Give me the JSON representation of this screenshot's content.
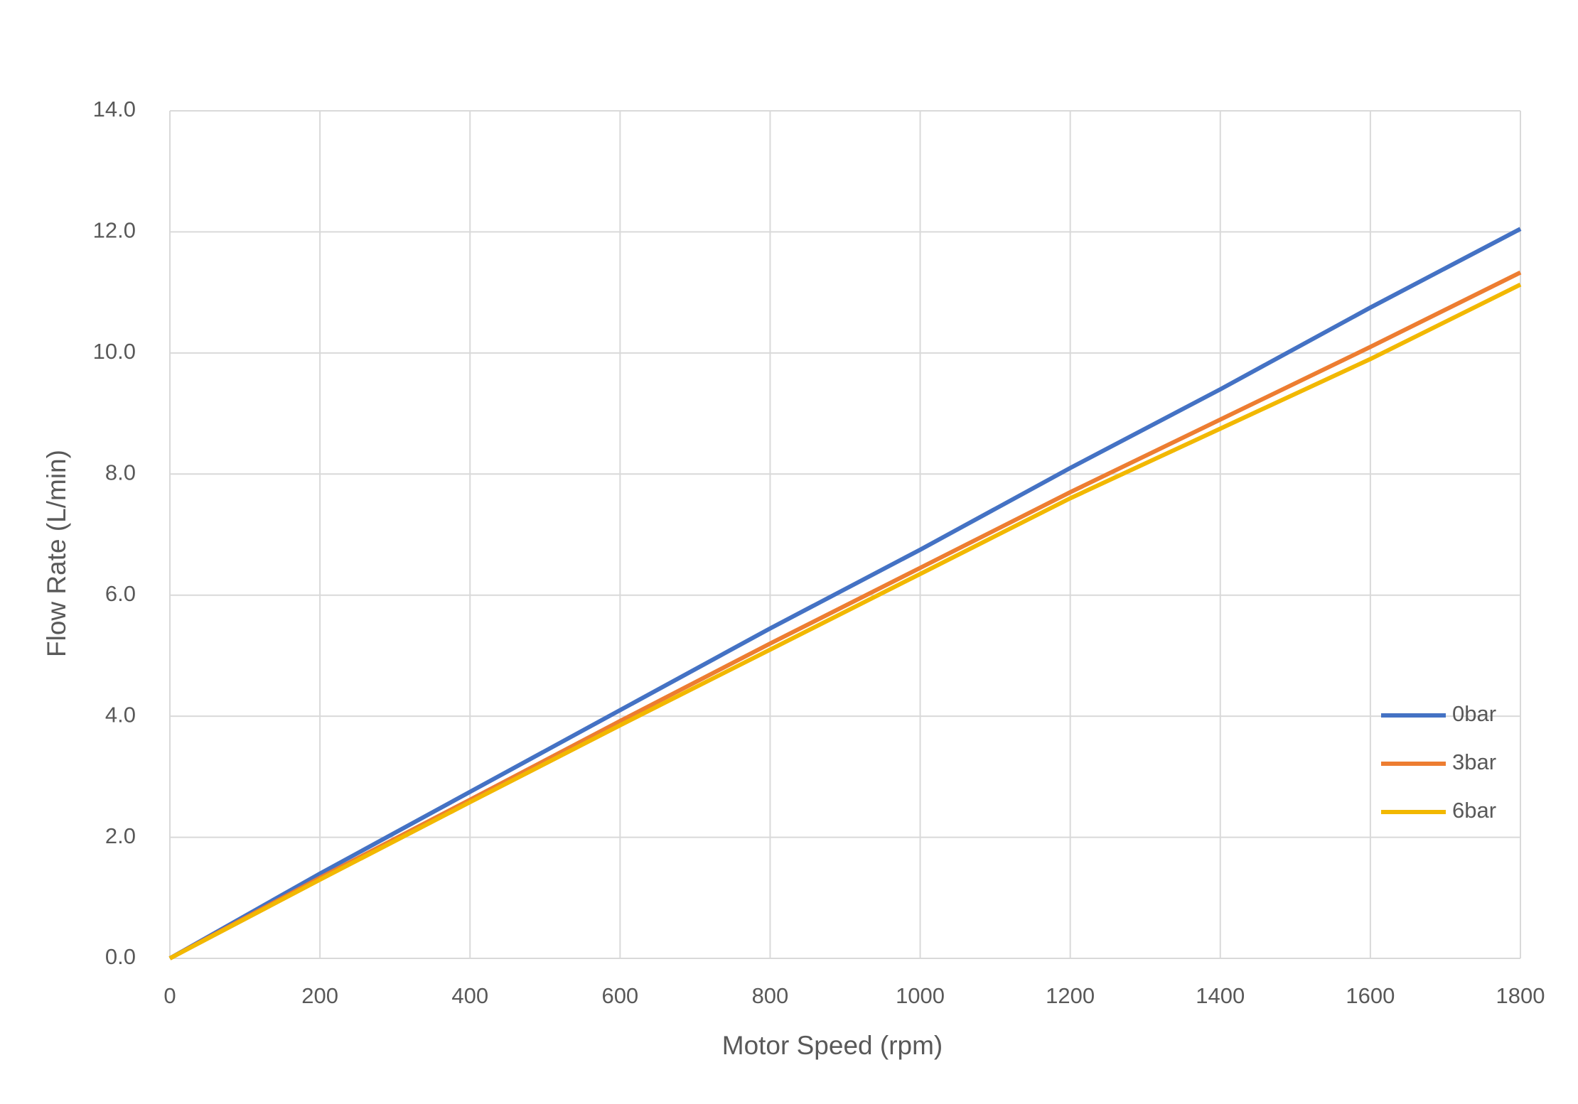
{
  "chart_data": {
    "type": "line",
    "x_label": "Motor Speed (rpm)",
    "y_label": "Flow Rate (L/min)",
    "x": [
      0,
      200,
      400,
      600,
      800,
      1000,
      1200,
      1400,
      1600,
      1800
    ],
    "series": [
      {
        "name": "0bar",
        "color": "#4472c4",
        "values": [
          0,
          1.4,
          2.75,
          4.1,
          5.45,
          6.75,
          8.1,
          9.4,
          10.75,
          12.05
        ]
      },
      {
        "name": "3bar",
        "color": "#ed7d31",
        "values": [
          0,
          1.33,
          2.62,
          3.92,
          5.2,
          6.45,
          7.7,
          8.9,
          10.1,
          11.33
        ]
      },
      {
        "name": "6bar",
        "color": "#f2b800",
        "values": [
          0,
          1.3,
          2.58,
          3.85,
          5.1,
          6.35,
          7.6,
          8.75,
          9.9,
          11.13
        ]
      }
    ],
    "xlim": [
      0,
      1800
    ],
    "xticks": [
      0,
      200,
      400,
      600,
      800,
      1000,
      1200,
      1400,
      1600,
      1800
    ],
    "ylim": [
      0,
      14
    ],
    "yticks": [
      {
        "value": 0,
        "label": "0.0"
      },
      {
        "value": 2,
        "label": "2.0"
      },
      {
        "value": 4,
        "label": "4.0"
      },
      {
        "value": 6,
        "label": "6.0"
      },
      {
        "value": 8,
        "label": "8.0"
      },
      {
        "value": 10,
        "label": "10.0"
      },
      {
        "value": 12,
        "label": "12.0"
      },
      {
        "value": 14,
        "label": "14.0"
      }
    ],
    "grid": true,
    "legend": "right"
  }
}
